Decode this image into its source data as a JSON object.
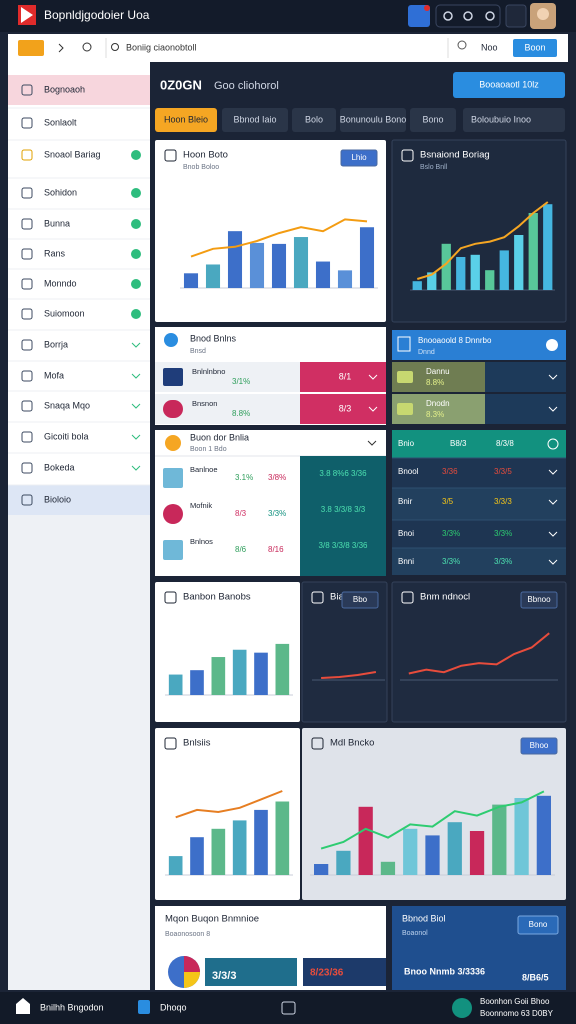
{
  "app": {
    "title": "Bopnldjgodoier Uoa",
    "search": "Boniig ciaonobtoll",
    "user_label": "Noo",
    "user_button": "Boon"
  },
  "sidebar": {
    "items": [
      "Bognoaoh",
      "Sonlaolt",
      "Snoaol Bariag",
      "Sohidon",
      "Bunna",
      "Rans",
      "Monndo",
      "Suiomoon",
      "Borrja",
      "Mofa",
      "Snaqa Mqo",
      "Gicoiti bola",
      "Bokeda",
      "Bioloio"
    ],
    "highlight": 0,
    "selected": 13
  },
  "main": {
    "title": "0Z0GN",
    "subtitle": "Goo cliohorol",
    "action": "Booaoaotl 10lz"
  },
  "tabs": {
    "items": [
      "Hoon Bleio",
      "Bbnod Iaio",
      "Bolo",
      "Bonunoulu Bono",
      "Bono",
      "Boloubuio Inoo"
    ],
    "active": 0
  },
  "charts": [
    {
      "title": "Hoon Boto",
      "subtitle": "Bnob Boloo",
      "button": "Lhio",
      "bars": [
        15,
        24,
        58,
        46,
        45,
        52,
        27,
        18,
        62
      ],
      "line": [
        32,
        40,
        42,
        48,
        56,
        62,
        58,
        70,
        68
      ],
      "colors": [
        "#3d6fc9",
        "#4aa8c0",
        "#3d6fc9",
        "#5a90d8"
      ],
      "line_color": "#f39c12",
      "ylim": [
        0,
        100
      ]
    },
    {
      "title": "Bsnaiond Boriag",
      "subtitle": "Bslo Bnll",
      "bars": [
        8,
        16,
        42,
        30,
        32,
        18,
        36,
        50,
        70,
        78
      ],
      "line": [
        10,
        14,
        24,
        38,
        42,
        44,
        48,
        58,
        70,
        80
      ],
      "colors": [
        "#45b6e0",
        "#5ad0e8",
        "#58c79a"
      ],
      "line_color": "#f5a623",
      "ylim": [
        0,
        100
      ]
    },
    {
      "title": "Banbon Banobs",
      "bars": [
        28,
        34,
        52,
        62,
        58,
        70
      ],
      "colors": [
        "#4aa8c0",
        "#3d6fc9",
        "#5cb88a"
      ],
      "ylim": [
        0,
        100
      ]
    },
    {
      "title": "Biao",
      "button": "Bbo",
      "line": [
        4,
        6,
        10,
        16
      ],
      "line_color": "#e74c3c",
      "ylim": [
        0,
        100
      ]
    },
    {
      "title": "Bnm ndnocl",
      "button": "Bbnoo",
      "line": [
        10,
        16,
        12,
        22,
        26,
        24,
        40,
        50,
        72
      ],
      "line_color": "#e74c3c",
      "ylim": [
        0,
        100
      ]
    },
    {
      "title": "Bnlsiis",
      "bars": [
        18,
        36,
        44,
        52,
        62,
        70
      ],
      "line": [
        55,
        62,
        60,
        64,
        72,
        80
      ],
      "colors": [
        "#4aa8c0",
        "#3d6fc9",
        "#5cb88a"
      ],
      "line_color": "#e67e22",
      "ylim": [
        0,
        100
      ]
    },
    {
      "title": "Mdl Bncko",
      "button": "Bhoo",
      "bars": [
        10,
        22,
        62,
        12,
        42,
        36,
        48,
        40,
        64,
        70,
        72
      ],
      "line": [
        24,
        30,
        42,
        34,
        46,
        44,
        58,
        54,
        62,
        66,
        76
      ],
      "colors": [
        "#3d6fc9",
        "#4aa8c0",
        "#c8285a",
        "#5cb88a",
        "#6fc6d8"
      ],
      "line_color": "#2ecc71",
      "ylim": [
        0,
        100
      ]
    }
  ],
  "lists": [
    {
      "title": "Bnod Bnlns",
      "subtitle": "Bnsd",
      "rows": [
        {
          "label": "Bnlnlnbno",
          "value": "3/1%",
          "right": "8/1"
        },
        {
          "label": "Bnsnon",
          "value": "8.8%",
          "right": "8/3"
        }
      ]
    },
    {
      "title": "Bnooaoold 8 Dnnrbo",
      "subtitle": "Dnnd",
      "rows": [
        {
          "label": "Dannu",
          "value": "8.8%"
        },
        {
          "label": "Dnodn",
          "value": "8.3%"
        }
      ]
    },
    {
      "title": "Buon dor Bnlia",
      "subtitle": "Boon 1 Bdo",
      "rows": [
        {
          "label": "Banlnoe",
          "a": "3.1%",
          "b": "3/8%",
          "c": "3.8 8%6 3/36"
        },
        {
          "label": "Mofnik",
          "a": "8/3",
          "b": "3/3%",
          "c": "3.8 3/3/8 3/3"
        },
        {
          "label": "Bnlnos",
          "a": "8/6",
          "b": "8/16",
          "c": "3/8 3/3/8 3/36"
        }
      ]
    },
    {
      "header": [
        "Bnio",
        "B8/3",
        "8/3/8"
      ],
      "rows": [
        [
          "Bnool",
          "3/36",
          "3/3/5"
        ],
        [
          "Bnir",
          "3/5",
          "3/3/3"
        ],
        [
          "Bnoi",
          "3/3%",
          "3/3%"
        ],
        [
          "Bnni",
          "3/3%",
          "3/3%"
        ]
      ]
    }
  ],
  "bottom": [
    {
      "title": "Mqon Buqon Bnmnioe",
      "subtitle": "Boaonosoon 8",
      "values": [
        "3/3/3",
        "8/23/36"
      ]
    },
    {
      "title": "Bbnod Biol",
      "subtitle": "Boaonol",
      "button": "Bono",
      "values": [
        "Bnoo Nnmb 3/3336",
        "8/B6/5"
      ]
    }
  ],
  "footer": {
    "left": "Bnilhh Bngodon",
    "middle": "Dhoqo",
    "right": [
      "Boonhon Goii Bhoo",
      "Boonnomo 63 D0BY"
    ]
  }
}
